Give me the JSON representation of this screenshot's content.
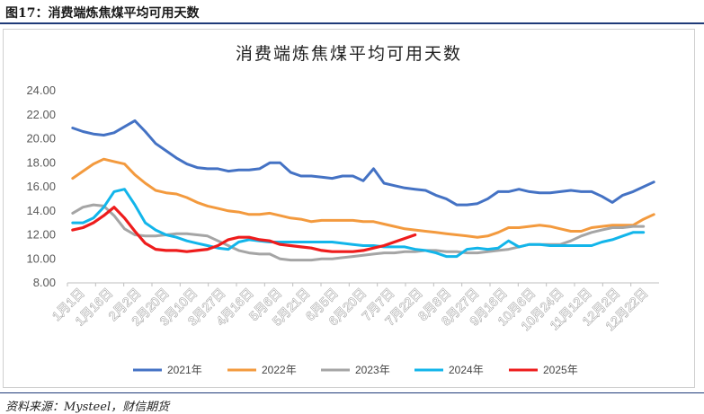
{
  "figure_caption": "图17：消费端炼焦煤平均可用天数",
  "source": "资料来源：Mysteel，财信期货",
  "colors": {
    "2021年": "#4472c4",
    "2022年": "#f39a3e",
    "2023年": "#a5a5a5",
    "2024年": "#12b5ea",
    "2025年": "#ee1c1c",
    "rule": "#1f3a78"
  },
  "chart_data": {
    "type": "line",
    "title": "消费端炼焦煤平均可用天数",
    "ylim": [
      8,
      24
    ],
    "yticks": [
      "8.00",
      "10.00",
      "12.00",
      "14.00",
      "16.00",
      "18.00",
      "20.00",
      "22.00",
      "24.00"
    ],
    "x_tick_labels": [
      "1月1日",
      "1月16日",
      "2月2日",
      "2月20日",
      "3月10日",
      "3月27日",
      "4月16日",
      "5月6日",
      "5月21日",
      "6月5日",
      "6月20日",
      "7月7日",
      "7月22日",
      "8月8日",
      "8月27日",
      "9月16日",
      "10月6日",
      "10月24日",
      "11月12日",
      "12月2日",
      "12月22日"
    ],
    "legend_position": "bottom",
    "grid": false,
    "series": [
      {
        "name": "2021年",
        "values": [
          20.9,
          20.6,
          20.4,
          20.3,
          20.5,
          21.0,
          21.5,
          20.6,
          19.6,
          19.0,
          18.4,
          17.9,
          17.6,
          17.5,
          17.5,
          17.3,
          17.4,
          17.4,
          17.5,
          18.0,
          18.0,
          17.2,
          16.9,
          16.9,
          16.8,
          16.7,
          16.9,
          16.9,
          16.5,
          17.5,
          16.3,
          16.1,
          15.9,
          15.8,
          15.7,
          15.3,
          15.0,
          14.5,
          14.5,
          14.6,
          15.0,
          15.6,
          15.6,
          15.8,
          15.6,
          15.5,
          15.5,
          15.6,
          15.7,
          15.6,
          15.6,
          15.2,
          14.7,
          15.3,
          15.6,
          16.0,
          16.4
        ]
      },
      {
        "name": "2022年",
        "values": [
          16.7,
          17.3,
          17.9,
          18.3,
          18.1,
          17.9,
          17.0,
          16.3,
          15.7,
          15.5,
          15.4,
          15.1,
          14.7,
          14.4,
          14.2,
          14.0,
          13.9,
          13.7,
          13.7,
          13.8,
          13.6,
          13.4,
          13.3,
          13.1,
          13.2,
          13.2,
          13.2,
          13.2,
          13.1,
          13.1,
          12.9,
          12.7,
          12.5,
          12.4,
          12.3,
          12.2,
          12.1,
          12.0,
          11.9,
          11.8,
          11.9,
          12.2,
          12.6,
          12.6,
          12.7,
          12.8,
          12.7,
          12.5,
          12.3,
          12.3,
          12.6,
          12.7,
          12.8,
          12.8,
          12.8,
          13.3,
          13.7
        ]
      },
      {
        "name": "2023年",
        "values": [
          13.8,
          14.3,
          14.5,
          14.4,
          13.6,
          12.5,
          12.0,
          11.9,
          11.9,
          12.0,
          12.1,
          12.1,
          12.0,
          11.9,
          11.5,
          11.1,
          10.7,
          10.5,
          10.4,
          10.4,
          10.0,
          9.9,
          9.9,
          9.9,
          10.0,
          10.0,
          10.1,
          10.2,
          10.3,
          10.4,
          10.5,
          10.5,
          10.6,
          10.6,
          10.7,
          10.7,
          10.6,
          10.6,
          10.5,
          10.5,
          10.6,
          10.7,
          10.8,
          11.0,
          11.2,
          11.2,
          11.2,
          11.2,
          11.5,
          11.9,
          12.2,
          12.4,
          12.6,
          12.6,
          12.7,
          12.7
        ]
      },
      {
        "name": "2024年",
        "values": [
          13.0,
          13.0,
          13.4,
          14.3,
          15.6,
          15.8,
          14.5,
          13.0,
          12.4,
          12.0,
          11.8,
          11.5,
          11.3,
          11.1,
          10.9,
          10.8,
          11.4,
          11.6,
          11.5,
          11.4,
          11.4,
          11.4,
          11.4,
          11.4,
          11.4,
          11.4,
          11.3,
          11.2,
          11.1,
          11.1,
          11.0,
          11.0,
          11.0,
          10.8,
          10.7,
          10.5,
          10.2,
          10.2,
          10.8,
          10.9,
          10.8,
          10.9,
          11.5,
          11.0,
          11.2,
          11.2,
          11.1,
          11.1,
          11.1,
          11.1,
          11.1,
          11.4,
          11.6,
          11.9,
          12.2,
          12.2
        ]
      },
      {
        "name": "2025年",
        "values": [
          12.4,
          12.6,
          13.0,
          13.6,
          14.3,
          13.4,
          12.3,
          11.3,
          10.8,
          10.7,
          10.7,
          10.6,
          10.7,
          10.8,
          11.1,
          11.6,
          11.8,
          11.8,
          11.6,
          11.5,
          11.2,
          11.1,
          11.0,
          10.9,
          10.7,
          10.6,
          10.6,
          10.6,
          10.7,
          10.9,
          11.1,
          11.4,
          11.7,
          12.0
        ]
      }
    ]
  }
}
